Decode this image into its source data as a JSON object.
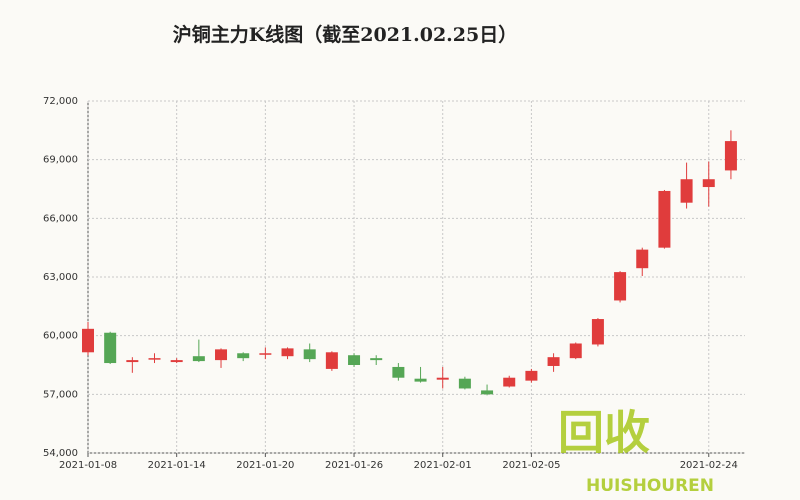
{
  "chart_data": {
    "type": "candlestick",
    "title": "沪铜主力K线图（截至2021.02.25日）",
    "categories": [
      "2021-01-08",
      null,
      null,
      null,
      "2021-01-14",
      null,
      null,
      null,
      "2021-01-20",
      null,
      null,
      null,
      "2021-01-26",
      null,
      null,
      null,
      "2021-02-01",
      null,
      null,
      null,
      "2021-02-05",
      null,
      null,
      null,
      null,
      null,
      null,
      null,
      "2021-02-24",
      null
    ],
    "open": [
      59150,
      60150,
      58650,
      58800,
      58650,
      58950,
      58750,
      59100,
      59050,
      58950,
      59300,
      58300,
      59000,
      58850,
      58400,
      57800,
      57750,
      57800,
      57200,
      57400,
      57700,
      58450,
      58850,
      59550,
      61800,
      63450,
      64500,
      66800,
      67600,
      68450
    ],
    "high": [
      60700,
      60200,
      58900,
      59100,
      58850,
      59800,
      59350,
      59150,
      59400,
      59400,
      59600,
      59200,
      59100,
      59000,
      58600,
      58400,
      58400,
      57900,
      57500,
      57950,
      58300,
      59100,
      59650,
      60900,
      63300,
      64500,
      67450,
      68850,
      68900,
      70500
    ],
    "low": [
      59000,
      58550,
      58100,
      58600,
      58600,
      58650,
      58350,
      58700,
      58800,
      58800,
      58650,
      58200,
      58400,
      58500,
      57700,
      57600,
      57300,
      57250,
      56950,
      57350,
      57600,
      58150,
      58800,
      59450,
      61700,
      63050,
      64450,
      66500,
      66600,
      68000
    ],
    "close": [
      60350,
      58600,
      58750,
      58850,
      58750,
      58700,
      59300,
      58850,
      59100,
      59350,
      58800,
      59150,
      58500,
      58750,
      57850,
      57650,
      57850,
      57300,
      57000,
      57850,
      58200,
      58900,
      59600,
      60850,
      63250,
      64400,
      67400,
      68000,
      68000,
      69950
    ],
    "up_color": "#e03c3c",
    "down_color": "#55a655",
    "ylim": [
      54000,
      72000
    ],
    "yticks": [
      {
        "value": 54000,
        "label": "54,000"
      },
      {
        "value": 57000,
        "label": "57,000"
      },
      {
        "value": 60000,
        "label": "60,000"
      },
      {
        "value": 63000,
        "label": "63,000"
      },
      {
        "value": 66000,
        "label": "66,000"
      },
      {
        "value": 69000,
        "label": "69,000"
      },
      {
        "value": 72000,
        "label": "72,000"
      }
    ],
    "grid": true,
    "logo": {
      "main": "回收",
      "sub": "HUISHOUREN"
    }
  }
}
